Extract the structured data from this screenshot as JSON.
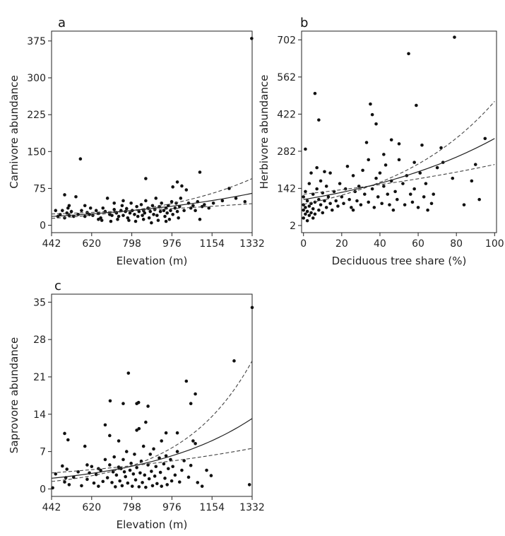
{
  "chart_data": [
    {
      "panel": "a",
      "type": "scatter",
      "xlabel": "Elevation (m)",
      "ylabel": "Carnivore abundance",
      "xlim": [
        442,
        1332
      ],
      "ylim": [
        -15,
        395
      ],
      "xticks": [
        442,
        620,
        798,
        976,
        1154,
        1332
      ],
      "yticks": [
        0,
        75,
        150,
        225,
        300,
        375
      ],
      "fit": {
        "type": "exponential",
        "at_xmin": 18,
        "at_xmax": 65
      },
      "ci_lower": {
        "type": "exponential",
        "at_xmin": 23,
        "at_xmax": 44
      },
      "ci_upper": {
        "type": "exponential",
        "at_xmin": 14,
        "at_xmax": 95
      },
      "points": [
        [
          1330,
          380
        ],
        [
          570,
          135
        ],
        [
          500,
          62
        ],
        [
          550,
          58
        ],
        [
          860,
          95
        ],
        [
          1100,
          108
        ],
        [
          980,
          78
        ],
        [
          1000,
          88
        ],
        [
          1020,
          80
        ],
        [
          1040,
          72
        ],
        [
          1230,
          75
        ],
        [
          470,
          18
        ],
        [
          480,
          22
        ],
        [
          490,
          30
        ],
        [
          500,
          15
        ],
        [
          510,
          25
        ],
        [
          515,
          35
        ],
        [
          520,
          20
        ],
        [
          530,
          28
        ],
        [
          540,
          18
        ],
        [
          560,
          22
        ],
        [
          575,
          30
        ],
        [
          590,
          18
        ],
        [
          600,
          26
        ],
        [
          610,
          22
        ],
        [
          625,
          20
        ],
        [
          640,
          30
        ],
        [
          650,
          24
        ],
        [
          660,
          15
        ],
        [
          670,
          35
        ],
        [
          680,
          28
        ],
        [
          690,
          55
        ],
        [
          700,
          22
        ],
        [
          710,
          20
        ],
        [
          720,
          32
        ],
        [
          730,
          25
        ],
        [
          740,
          18
        ],
        [
          750,
          30
        ],
        [
          755,
          40
        ],
        [
          760,
          20
        ],
        [
          770,
          28
        ],
        [
          775,
          34
        ],
        [
          780,
          15
        ],
        [
          790,
          25
        ],
        [
          795,
          45
        ],
        [
          800,
          30
        ],
        [
          810,
          22
        ],
        [
          820,
          38
        ],
        [
          825,
          18
        ],
        [
          830,
          28
        ],
        [
          840,
          42
        ],
        [
          845,
          20
        ],
        [
          850,
          30
        ],
        [
          855,
          25
        ],
        [
          860,
          50
        ],
        [
          870,
          35
        ],
        [
          875,
          15
        ],
        [
          880,
          28
        ],
        [
          890,
          40
        ],
        [
          895,
          22
        ],
        [
          900,
          32
        ],
        [
          905,
          55
        ],
        [
          910,
          20
        ],
        [
          920,
          38
        ],
        [
          925,
          28
        ],
        [
          930,
          45
        ],
        [
          940,
          30
        ],
        [
          945,
          18
        ],
        [
          950,
          35
        ],
        [
          955,
          25
        ],
        [
          960,
          40
        ],
        [
          965,
          12
        ],
        [
          970,
          30
        ],
        [
          975,
          48
        ],
        [
          980,
          22
        ],
        [
          990,
          35
        ],
        [
          995,
          45
        ],
        [
          1000,
          28
        ],
        [
          1010,
          38
        ],
        [
          1015,
          55
        ],
        [
          1030,
          30
        ],
        [
          1050,
          45
        ],
        [
          1060,
          35
        ],
        [
          1070,
          40
        ],
        [
          1080,
          30
        ],
        [
          1090,
          48
        ],
        [
          1110,
          38
        ],
        [
          1120,
          42
        ],
        [
          1140,
          35
        ],
        [
          1160,
          45
        ],
        [
          1200,
          50
        ],
        [
          1260,
          55
        ],
        [
          1300,
          48
        ],
        [
          590,
          40
        ],
        [
          615,
          35
        ],
        [
          665,
          10
        ],
        [
          705,
          8
        ],
        [
          735,
          12
        ],
        [
          785,
          10
        ],
        [
          815,
          8
        ],
        [
          850,
          12
        ],
        [
          885,
          5
        ],
        [
          915,
          10
        ],
        [
          950,
          8
        ],
        [
          1005,
          15
        ],
        [
          1100,
          12
        ],
        [
          460,
          30
        ],
        [
          520,
          40
        ],
        [
          650,
          12
        ],
        [
          720,
          45
        ],
        [
          760,
          50
        ]
      ]
    },
    {
      "panel": "b",
      "type": "scatter",
      "xlabel": "Deciduous tree share (%)",
      "ylabel": "Herbivore abundance",
      "xlim": [
        -1,
        101
      ],
      "ylim": [
        -25,
        735
      ],
      "xticks": [
        0,
        20,
        40,
        60,
        80,
        100
      ],
      "yticks": [
        2,
        142,
        282,
        422,
        562,
        702
      ],
      "fit": {
        "type": "exponential",
        "at_xmin": 100,
        "at_xmax": 330
      },
      "ci_lower": {
        "type": "exponential",
        "at_xmin": 120,
        "at_xmax": 232
      },
      "ci_upper": {
        "type": "exponential",
        "at_xmin": 82,
        "at_xmax": 470
      },
      "points": [
        [
          79,
          712
        ],
        [
          55,
          650
        ],
        [
          6,
          500
        ],
        [
          59,
          455
        ],
        [
          8,
          400
        ],
        [
          35,
          460
        ],
        [
          36,
          420
        ],
        [
          38,
          385
        ],
        [
          33,
          315
        ],
        [
          46,
          325
        ],
        [
          62,
          305
        ],
        [
          72,
          295
        ],
        [
          95,
          330
        ],
        [
          90,
          232
        ],
        [
          1,
          290
        ],
        [
          0,
          30
        ],
        [
          0,
          60
        ],
        [
          0,
          80
        ],
        [
          0,
          110
        ],
        [
          1,
          45
        ],
        [
          1,
          70
        ],
        [
          1,
          130
        ],
        [
          2,
          20
        ],
        [
          2,
          55
        ],
        [
          2,
          95
        ],
        [
          3,
          40
        ],
        [
          3,
          75
        ],
        [
          3,
          160
        ],
        [
          4,
          50
        ],
        [
          4,
          85
        ],
        [
          4,
          200
        ],
        [
          5,
          30
        ],
        [
          5,
          65
        ],
        [
          5,
          120
        ],
        [
          6,
          45
        ],
        [
          6,
          90
        ],
        [
          7,
          140
        ],
        [
          7,
          220
        ],
        [
          8,
          60
        ],
        [
          8,
          100
        ],
        [
          9,
          80
        ],
        [
          9,
          170
        ],
        [
          10,
          50
        ],
        [
          10,
          125
        ],
        [
          11,
          95
        ],
        [
          11,
          205
        ],
        [
          12,
          70
        ],
        [
          12,
          150
        ],
        [
          13,
          110
        ],
        [
          14,
          85
        ],
        [
          15,
          60
        ],
        [
          16,
          130
        ],
        [
          17,
          95
        ],
        [
          18,
          75
        ],
        [
          19,
          160
        ],
        [
          20,
          110
        ],
        [
          21,
          85
        ],
        [
          22,
          140
        ],
        [
          23,
          225
        ],
        [
          24,
          100
        ],
        [
          25,
          70
        ],
        [
          26,
          190
        ],
        [
          27,
          130
        ],
        [
          28,
          95
        ],
        [
          29,
          150
        ],
        [
          30,
          80
        ],
        [
          31,
          210
        ],
        [
          32,
          120
        ],
        [
          34,
          90
        ],
        [
          34,
          250
        ],
        [
          36,
          140
        ],
        [
          37,
          70
        ],
        [
          38,
          180
        ],
        [
          39,
          110
        ],
        [
          40,
          200
        ],
        [
          41,
          85
        ],
        [
          42,
          150
        ],
        [
          43,
          230
        ],
        [
          44,
          120
        ],
        [
          45,
          80
        ],
        [
          46,
          170
        ],
        [
          47,
          60
        ],
        [
          48,
          130
        ],
        [
          49,
          100
        ],
        [
          50,
          250
        ],
        [
          52,
          160
        ],
        [
          53,
          80
        ],
        [
          54,
          190
        ],
        [
          56,
          120
        ],
        [
          57,
          90
        ],
        [
          58,
          140
        ],
        [
          60,
          70
        ],
        [
          61,
          200
        ],
        [
          63,
          110
        ],
        [
          64,
          160
        ],
        [
          65,
          60
        ],
        [
          67,
          85
        ],
        [
          68,
          120
        ],
        [
          70,
          220
        ],
        [
          73,
          240
        ],
        [
          78,
          180
        ],
        [
          84,
          80
        ],
        [
          88,
          170
        ],
        [
          92,
          100
        ],
        [
          14,
          200
        ],
        [
          26,
          60
        ],
        [
          42,
          270
        ],
        [
          50,
          310
        ],
        [
          58,
          240
        ]
      ]
    },
    {
      "panel": "c",
      "type": "scatter",
      "xlabel": "Elevation (m)",
      "ylabel": "Saprovore abundance",
      "xlim": [
        442,
        1332
      ],
      "ylim": [
        -1.4,
        36.5
      ],
      "xticks": [
        442,
        620,
        798,
        976,
        1154,
        1332
      ],
      "yticks": [
        0,
        7,
        14,
        21,
        28,
        35
      ],
      "fit": {
        "type": "exponential",
        "at_xmin": 2.0,
        "at_xmax": 13.2
      },
      "ci_lower": {
        "type": "exponential",
        "at_xmin": 3.0,
        "at_xmax": 7.6
      },
      "ci_upper": {
        "type": "exponential",
        "at_xmin": 1.4,
        "at_xmax": 24.0
      },
      "points": [
        [
          1332,
          34
        ],
        [
          1252,
          24
        ],
        [
          783,
          21.7
        ],
        [
          1040,
          20.2
        ],
        [
          702,
          16.5
        ],
        [
          760,
          16
        ],
        [
          828,
          16.2
        ],
        [
          820,
          16
        ],
        [
          870,
          15.5
        ],
        [
          1060,
          16
        ],
        [
          1080,
          17.8
        ],
        [
          500,
          10.4
        ],
        [
          515,
          9.2
        ],
        [
          680,
          12
        ],
        [
          590,
          8
        ],
        [
          700,
          10
        ],
        [
          830,
          11.3
        ],
        [
          820,
          11
        ],
        [
          860,
          12.5
        ],
        [
          740,
          9
        ],
        [
          930,
          9
        ],
        [
          950,
          10.5
        ],
        [
          1070,
          9
        ],
        [
          1000,
          10.5
        ],
        [
          1080,
          8.5
        ],
        [
          447,
          0.2
        ],
        [
          500,
          1.3
        ],
        [
          505,
          2.1
        ],
        [
          510,
          3.7
        ],
        [
          520,
          0.8
        ],
        [
          540,
          2.2
        ],
        [
          560,
          3.2
        ],
        [
          575,
          0.6
        ],
        [
          600,
          1.8
        ],
        [
          610,
          3
        ],
        [
          620,
          4.2
        ],
        [
          630,
          1.1
        ],
        [
          640,
          2.7
        ],
        [
          650,
          0.5
        ],
        [
          660,
          3.5
        ],
        [
          670,
          1.4
        ],
        [
          680,
          5.5
        ],
        [
          690,
          2.1
        ],
        [
          700,
          4.5
        ],
        [
          710,
          1.2
        ],
        [
          715,
          3.2
        ],
        [
          720,
          6
        ],
        [
          725,
          0.4
        ],
        [
          730,
          2.6
        ],
        [
          740,
          4.1
        ],
        [
          745,
          1.5
        ],
        [
          750,
          3.8
        ],
        [
          755,
          0.6
        ],
        [
          760,
          5.5
        ],
        [
          770,
          2.3
        ],
        [
          775,
          7
        ],
        [
          780,
          1.1
        ],
        [
          790,
          3.5
        ],
        [
          795,
          4.8
        ],
        [
          800,
          0.5
        ],
        [
          805,
          2.8
        ],
        [
          810,
          6.5
        ],
        [
          815,
          1.7
        ],
        [
          820,
          4
        ],
        [
          830,
          0.4
        ],
        [
          835,
          3
        ],
        [
          840,
          5.2
        ],
        [
          845,
          1.2
        ],
        [
          850,
          8
        ],
        [
          855,
          2.6
        ],
        [
          860,
          0.3
        ],
        [
          870,
          4.5
        ],
        [
          875,
          1.9
        ],
        [
          880,
          6.5
        ],
        [
          885,
          3.3
        ],
        [
          890,
          0.6
        ],
        [
          895,
          7.5
        ],
        [
          900,
          2.4
        ],
        [
          905,
          4.2
        ],
        [
          910,
          1
        ],
        [
          920,
          5.8
        ],
        [
          925,
          3.1
        ],
        [
          930,
          0.5
        ],
        [
          940,
          4.7
        ],
        [
          945,
          2
        ],
        [
          950,
          6.2
        ],
        [
          955,
          0.8
        ],
        [
          960,
          3.8
        ],
        [
          970,
          5.5
        ],
        [
          975,
          1.5
        ],
        [
          980,
          4.2
        ],
        [
          990,
          2.6
        ],
        [
          1000,
          7
        ],
        [
          1010,
          1.3
        ],
        [
          1020,
          3.5
        ],
        [
          1030,
          5.3
        ],
        [
          1050,
          2.2
        ],
        [
          1060,
          4.4
        ],
        [
          1090,
          1.2
        ],
        [
          1110,
          0.5
        ],
        [
          1130,
          3.5
        ],
        [
          1150,
          2.5
        ],
        [
          1320,
          0.8
        ],
        [
          460,
          2.8
        ],
        [
          490,
          4.3
        ],
        [
          600,
          4.5
        ],
        [
          650,
          3.8
        ],
        [
          765,
          3.2
        ]
      ]
    }
  ]
}
